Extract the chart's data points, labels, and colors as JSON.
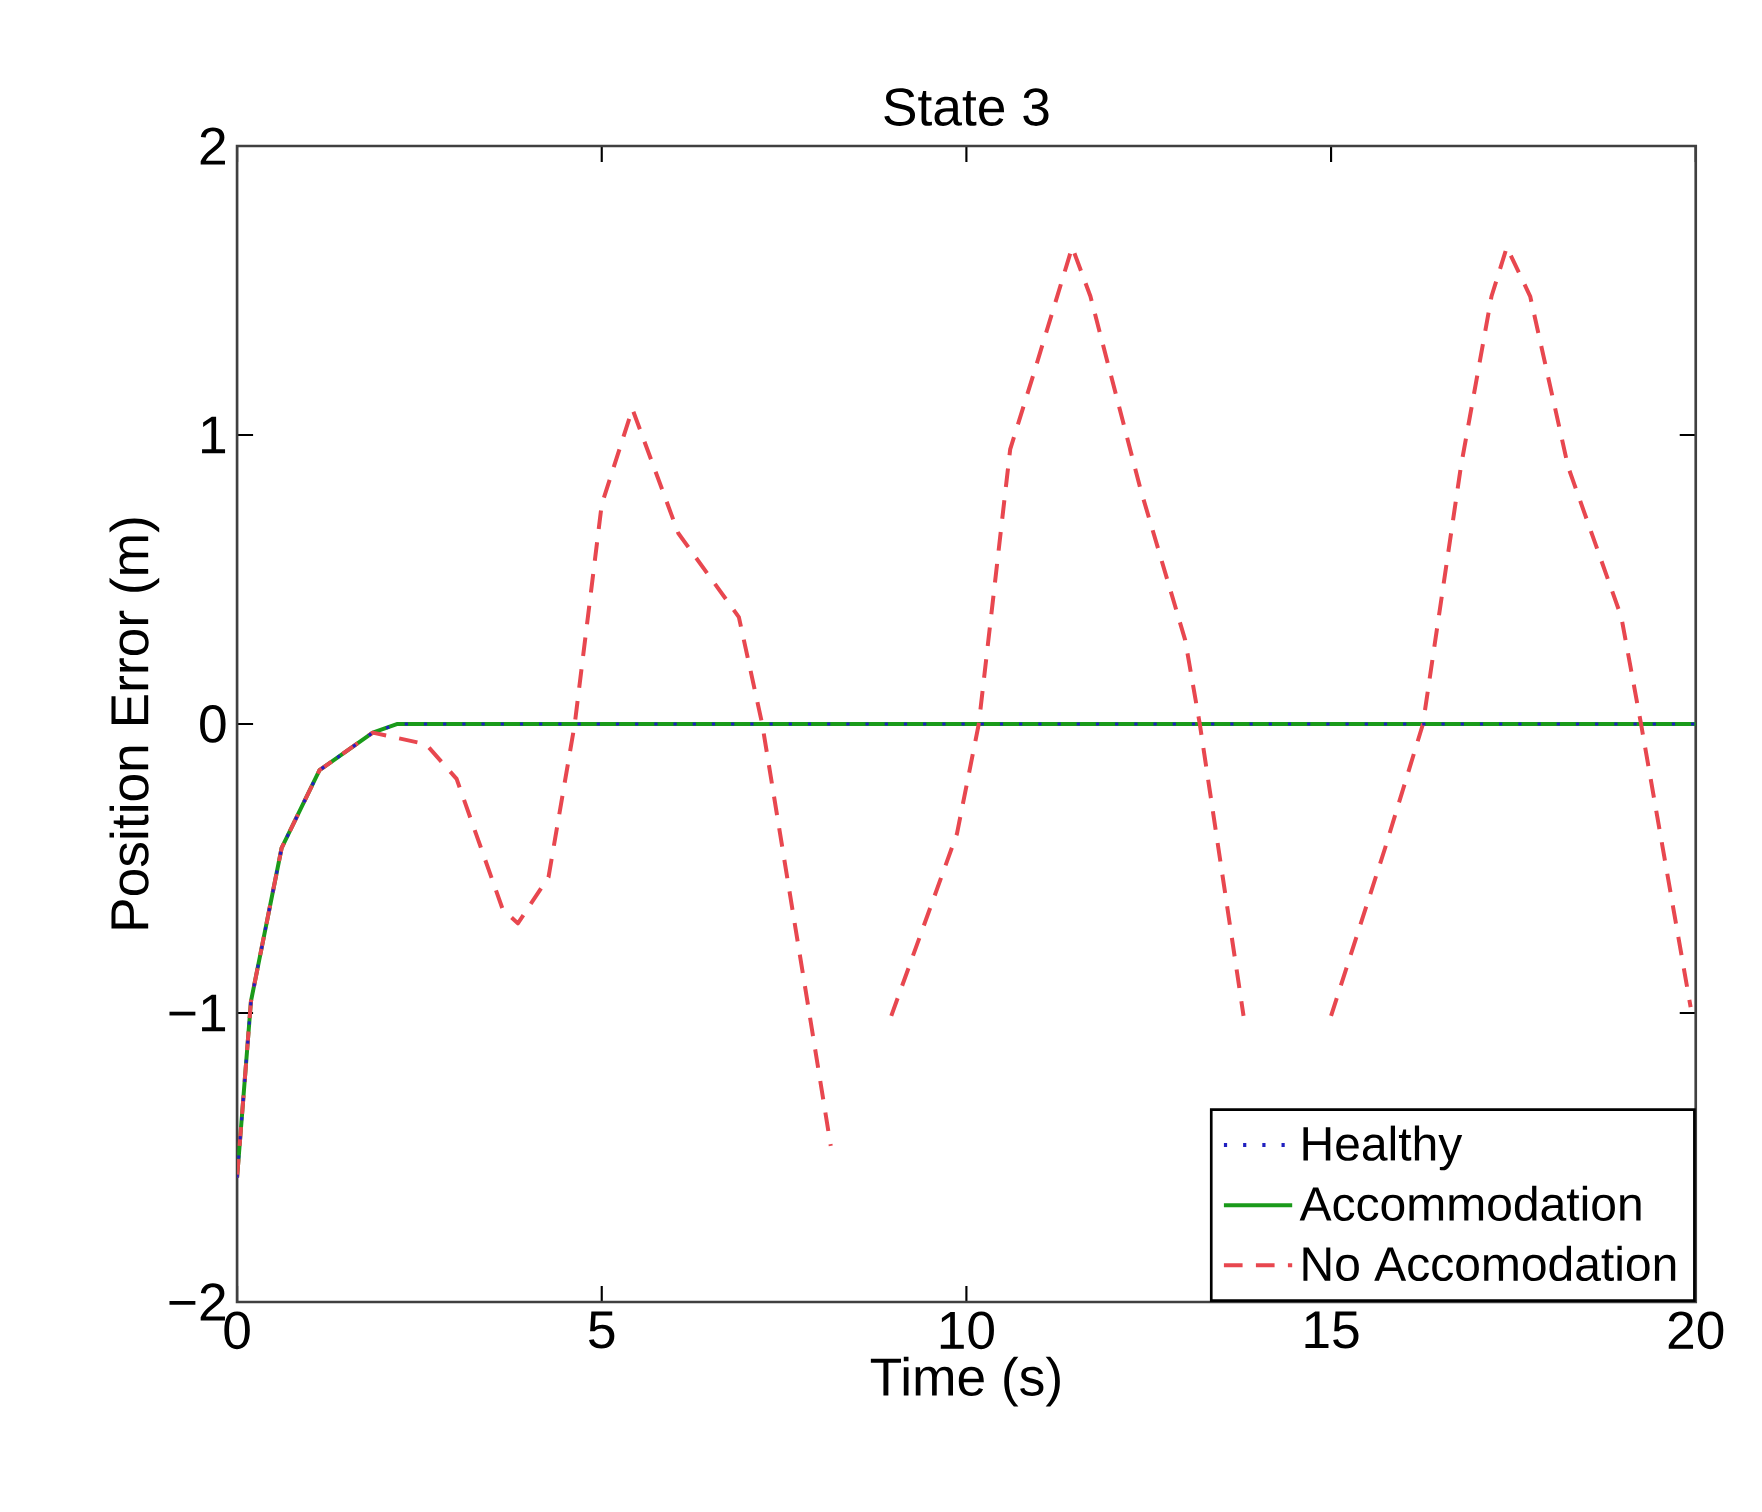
{
  "chart_data": {
    "type": "line",
    "title": "State 3",
    "xlabel": "Time (s)",
    "ylabel": "Position Error (m)",
    "xlim": [
      0,
      20
    ],
    "ylim": [
      -2,
      2
    ],
    "xticks": [
      0,
      5,
      10,
      15,
      20
    ],
    "yticks": [
      {
        "value": -2,
        "label": "−2"
      },
      {
        "value": -1,
        "label": "−1"
      },
      0,
      1,
      2
    ],
    "legend": "bottom right",
    "grid": false,
    "series": [
      {
        "name": "Healthy",
        "color": "#2020c0",
        "line_style": "dotted",
        "x": [
          0,
          0.19,
          0.61,
          1.13,
          1.86,
          2.2,
          20
        ],
        "values": [
          -1.57,
          -0.96,
          -0.43,
          -0.16,
          -0.03,
          0,
          0
        ]
      },
      {
        "name": "Accommodation",
        "color": "#1a9a1a",
        "line_style": "solid",
        "x": [
          0,
          0.19,
          0.61,
          1.13,
          1.86,
          2.2,
          20
        ],
        "values": [
          -1.57,
          -0.96,
          -0.43,
          -0.16,
          -0.03,
          0,
          0
        ]
      },
      {
        "name": "No Accomodation",
        "color": "#e8474f",
        "line_style": "dashed",
        "x": [
          0,
          0.19,
          0.61,
          1.13,
          1.86,
          2.59,
          3.01,
          3.64,
          3.85,
          4.27,
          4.63,
          5.0,
          5.42,
          6.05,
          6.88,
          7.2,
          7.82,
          8.14,
          8.5,
          8.97,
          9.87,
          10.17,
          10.6,
          10.92,
          11.45,
          11.7,
          12.39,
          13.0,
          13.2,
          13.8,
          14.4,
          15.0,
          15.74,
          16.26,
          16.78,
          17.2,
          17.41,
          17.73,
          18.25,
          18.98,
          19.25,
          19.93
        ],
        "values": [
          -1.57,
          -0.96,
          -0.43,
          -0.16,
          -0.03,
          -0.07,
          -0.19,
          -0.64,
          -0.69,
          -0.53,
          0,
          0.76,
          1.09,
          0.66,
          0.37,
          0,
          -0.96,
          -1.46,
          null,
          -1.01,
          -0.38,
          0,
          0.95,
          1.21,
          1.65,
          1.48,
          0.81,
          0.29,
          0,
          -1.01,
          null,
          -1.01,
          -0.43,
          0,
          0.89,
          1.48,
          1.65,
          1.48,
          0.89,
          0.37,
          0,
          -0.98
        ]
      }
    ]
  }
}
